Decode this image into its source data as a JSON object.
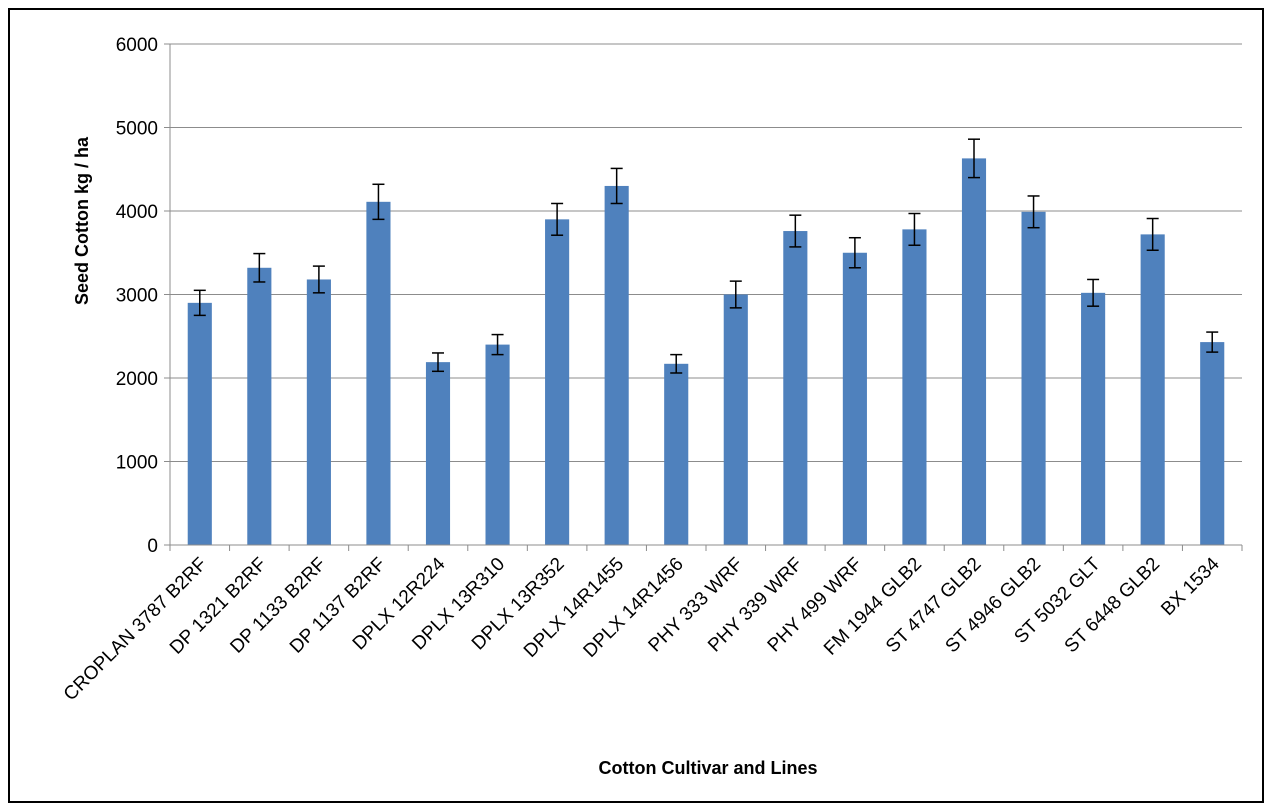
{
  "chart_data": {
    "type": "bar",
    "title": "",
    "xlabel": "Cotton Cultivar and Lines",
    "ylabel": "Seed Cotton kg / ha",
    "ylim": [
      0,
      6000
    ],
    "yticks": [
      0,
      1000,
      2000,
      3000,
      4000,
      5000,
      6000
    ],
    "grid": true,
    "legend": "none",
    "bar_color": "#4F81BD",
    "categories": [
      "CROPLAN 3787 B2RF",
      "DP 1321 B2RF",
      "DP 1133 B2RF",
      "DP 1137 B2RF",
      "DPLX 12R224",
      "DPLX 13R310",
      "DPLX 13R352",
      "DPLX 14R1455",
      "DPLX 14R1456",
      "PHY 333 WRF",
      "PHY 339 WRF",
      "PHY 499 WRF",
      "FM 1944 GLB2",
      "ST 4747 GLB2",
      "ST 4946 GLB2",
      "ST 5032 GLT",
      "ST 6448 GLB2",
      "BX 1534"
    ],
    "values": [
      2900,
      3320,
      3180,
      4110,
      2190,
      2400,
      3900,
      4300,
      2170,
      3000,
      3760,
      3500,
      3780,
      4630,
      3990,
      3020,
      3720,
      2430
    ],
    "error": [
      150,
      170,
      160,
      210,
      110,
      120,
      190,
      210,
      110,
      160,
      190,
      180,
      190,
      230,
      190,
      160,
      190,
      120
    ]
  }
}
